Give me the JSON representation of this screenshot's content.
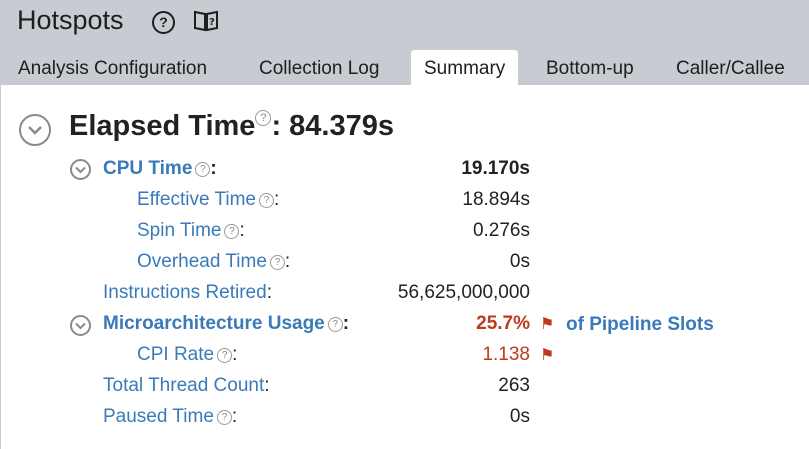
{
  "header": {
    "title": "Hotspots",
    "help_glyph": "?",
    "icons": [
      "help-circle-icon",
      "book-help-icon"
    ]
  },
  "tabs": [
    {
      "label": "Analysis Configuration",
      "active": false
    },
    {
      "label": "Collection Log",
      "active": false
    },
    {
      "label": "Summary",
      "active": true
    },
    {
      "label": "Bottom-up",
      "active": false
    },
    {
      "label": "Caller/Callee",
      "active": false
    }
  ],
  "summary": {
    "elapsed_label": "Elapsed Time",
    "elapsed_value": ": 84.379s",
    "help_glyph": "?",
    "colon": ":",
    "rows": {
      "cpu_time": {
        "label": "CPU Time",
        "value": "19.170s"
      },
      "effective_time": {
        "label": "Effective Time",
        "value": "18.894s"
      },
      "spin_time": {
        "label": "Spin Time",
        "value": "0.276s"
      },
      "overhead_time": {
        "label": "Overhead Time",
        "value": "0s"
      },
      "instructions_retired": {
        "label": "Instructions Retired",
        "value": "56,625,000,000"
      },
      "microarchitecture_usage": {
        "label": "Microarchitecture Usage",
        "value": "25.7%",
        "suffix": "of Pipeline Slots"
      },
      "cpi_rate": {
        "label": "CPI Rate",
        "value": "1.138"
      },
      "total_thread_count": {
        "label": "Total Thread Count",
        "value": "263"
      },
      "paused_time": {
        "label": "Paused Time",
        "value": "0s"
      }
    },
    "flag_glyph": "⚑",
    "colors": {
      "link": "#3a7ab8",
      "warning": "#c0391c",
      "header_bg": "#c8cbd1"
    }
  }
}
